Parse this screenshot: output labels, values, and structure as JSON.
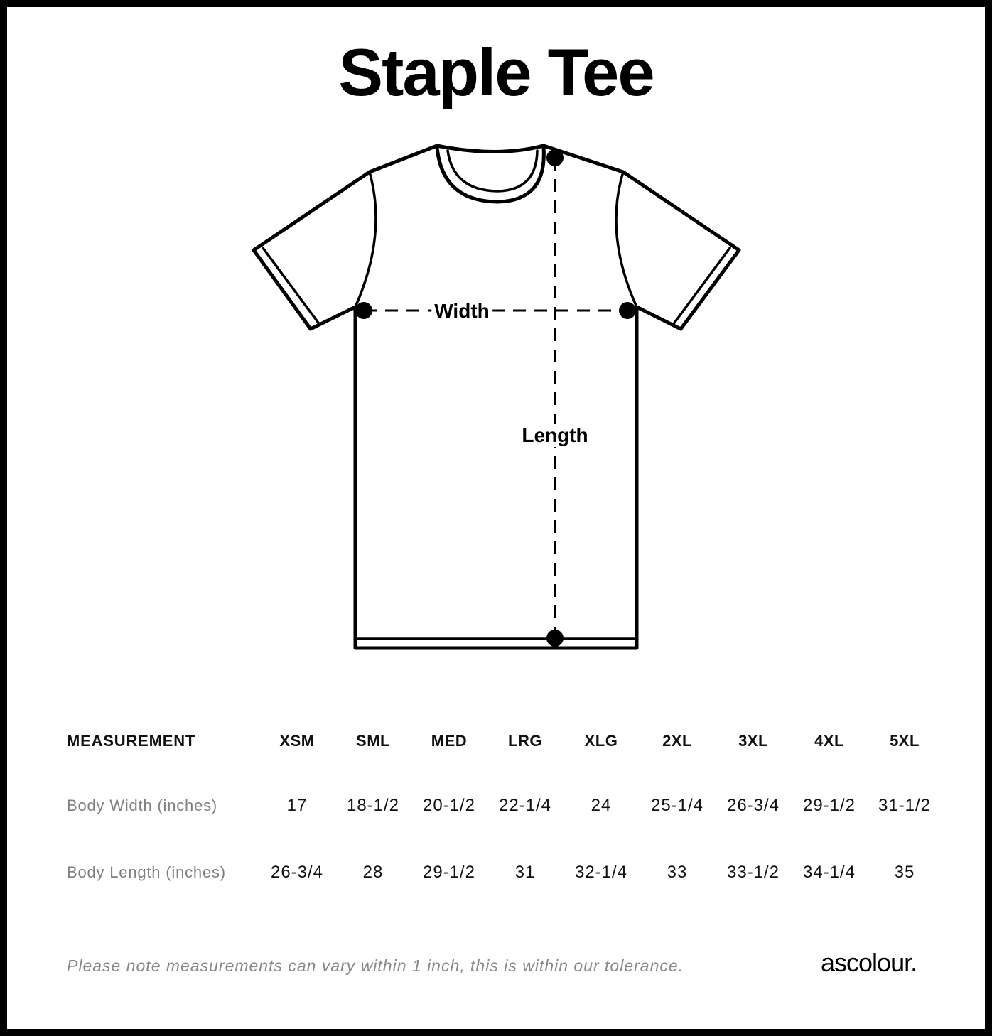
{
  "title": "Staple Tee",
  "diagram": {
    "width_label": "Width",
    "length_label": "Length"
  },
  "table": {
    "header_label": "MEASUREMENT",
    "sizes": [
      "XSM",
      "SML",
      "MED",
      "LRG",
      "XLG",
      "2XL",
      "3XL",
      "4XL",
      "5XL"
    ],
    "rows": [
      {
        "label": "Body Width (inches)",
        "values": [
          "17",
          "18-1/2",
          "20-1/2",
          "22-1/4",
          "24",
          "25-1/4",
          "26-3/4",
          "29-1/2",
          "31-1/2"
        ]
      },
      {
        "label": "Body Length (inches)",
        "values": [
          "26-3/4",
          "28",
          "29-1/2",
          "31",
          "32-1/4",
          "33",
          "33-1/2",
          "34-1/4",
          "35"
        ]
      }
    ]
  },
  "footer": {
    "note": "Please note measurements can vary within 1 inch, this is within our tolerance.",
    "brand": "ascolour."
  }
}
